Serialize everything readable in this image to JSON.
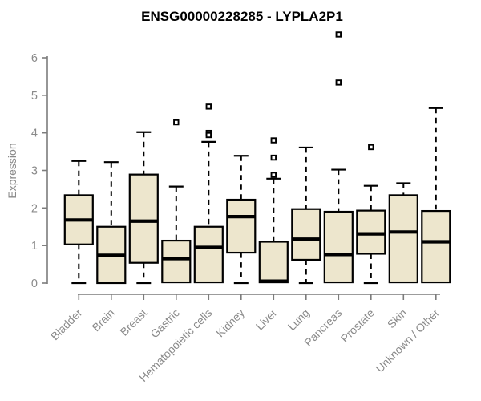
{
  "chart_data": {
    "type": "boxplot",
    "title": "ENSG00000228285 - LYPLA2P1",
    "ylabel": "Expression",
    "xlabel": "",
    "ylim": [
      0,
      6
    ],
    "yticks": [
      0,
      1,
      2,
      3,
      4,
      5,
      6
    ],
    "grid": false,
    "legend": "none",
    "categories": [
      "Bladder",
      "Brain",
      "Breast",
      "Gastric",
      "Hematopoietic cells",
      "Kidney",
      "Liver",
      "Lung",
      "Pancreas",
      "Prostate",
      "Skin",
      "Unknown / Other"
    ],
    "series": [
      {
        "category": "Bladder",
        "min": 0,
        "q1": 1.03,
        "median": 1.68,
        "q3": 2.34,
        "max": 3.25,
        "outliers": []
      },
      {
        "category": "Brain",
        "min": 0,
        "q1": 0.0,
        "median": 0.74,
        "q3": 1.5,
        "max": 3.22,
        "outliers": []
      },
      {
        "category": "Breast",
        "min": 0,
        "q1": 0.54,
        "median": 1.65,
        "q3": 2.89,
        "max": 4.02,
        "outliers": []
      },
      {
        "category": "Gastric",
        "min": 0,
        "q1": 0.02,
        "median": 0.65,
        "q3": 1.13,
        "max": 2.57,
        "outliers": [
          4.28
        ]
      },
      {
        "category": "Hematopoietic cells",
        "min": 0,
        "q1": 0.02,
        "median": 0.95,
        "q3": 1.5,
        "max": 3.76,
        "outliers": [
          4.7,
          4.0,
          3.94
        ]
      },
      {
        "category": "Kidney",
        "min": 0,
        "q1": 0.81,
        "median": 1.77,
        "q3": 2.22,
        "max": 3.39,
        "outliers": []
      },
      {
        "category": "Liver",
        "min": 0,
        "q1": 0.02,
        "median": 0.05,
        "q3": 1.1,
        "max": 2.78,
        "outliers": [
          3.8,
          3.34,
          2.88
        ]
      },
      {
        "category": "Lung",
        "min": 0,
        "q1": 0.62,
        "median": 1.17,
        "q3": 1.97,
        "max": 3.61,
        "outliers": []
      },
      {
        "category": "Pancreas",
        "min": 0,
        "q1": 0.02,
        "median": 0.76,
        "q3": 1.9,
        "max": 3.02,
        "outliers": [
          6.62,
          5.34
        ]
      },
      {
        "category": "Prostate",
        "min": 0,
        "q1": 0.78,
        "median": 1.31,
        "q3": 1.93,
        "max": 2.59,
        "outliers": [
          3.62
        ]
      },
      {
        "category": "Skin",
        "min": 0,
        "q1": 0.02,
        "median": 1.36,
        "q3": 2.34,
        "max": 2.66,
        "outliers": []
      },
      {
        "category": "Unknown / Other",
        "min": 0,
        "q1": 0.02,
        "median": 1.1,
        "q3": 1.92,
        "max": 4.66,
        "outliers": []
      }
    ],
    "colors": {
      "box_fill": "#EDE6CD",
      "box_stroke": "#000000",
      "median_color": "#000000",
      "whisker_color": "#000000",
      "outlier_stroke": "#000000",
      "outlier_fill": "#ffffff",
      "axis_color": "#7c7c7c",
      "tick_label_color": "#8a8a8a",
      "title_color": "#000000"
    }
  }
}
